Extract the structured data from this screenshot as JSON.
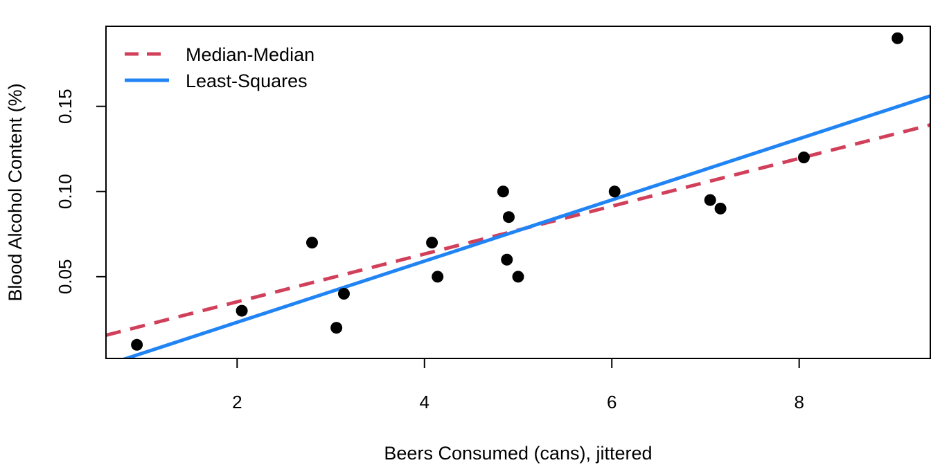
{
  "chart_data": {
    "type": "scatter",
    "title": "",
    "xlabel": "Beers Consumed (cans), jittered",
    "ylabel": "Blood Alcohol Content (%)",
    "xlim": [
      0.6,
      9.4
    ],
    "ylim": [
      0.002,
      0.197
    ],
    "xticks": [
      2,
      4,
      6,
      8
    ],
    "xtick_labels": [
      "2",
      "4",
      "6",
      "8"
    ],
    "yticks": [
      0.05,
      0.1,
      0.15
    ],
    "ytick_labels": [
      "0.05",
      "0.10",
      "0.15"
    ],
    "grid": false,
    "legend_position": "top-left",
    "points": {
      "color": "#000000",
      "x": [
        0.93,
        2.05,
        2.8,
        3.06,
        3.14,
        4.08,
        4.14,
        4.84,
        4.88,
        4.9,
        5.0,
        6.03,
        7.05,
        7.16,
        8.05,
        9.05
      ],
      "y": [
        0.01,
        0.03,
        0.07,
        0.02,
        0.04,
        0.07,
        0.05,
        0.1,
        0.06,
        0.085,
        0.05,
        0.1,
        0.095,
        0.09,
        0.12,
        0.19
      ]
    },
    "lines": [
      {
        "name": "Median-Median",
        "intercept": 0.0072,
        "slope": 0.01403,
        "color": "#D1405A",
        "dash": "dashed"
      },
      {
        "name": "Least-Squares",
        "intercept": -0.0127,
        "slope": 0.01796,
        "color": "#2184F5",
        "dash": "solid"
      }
    ]
  }
}
